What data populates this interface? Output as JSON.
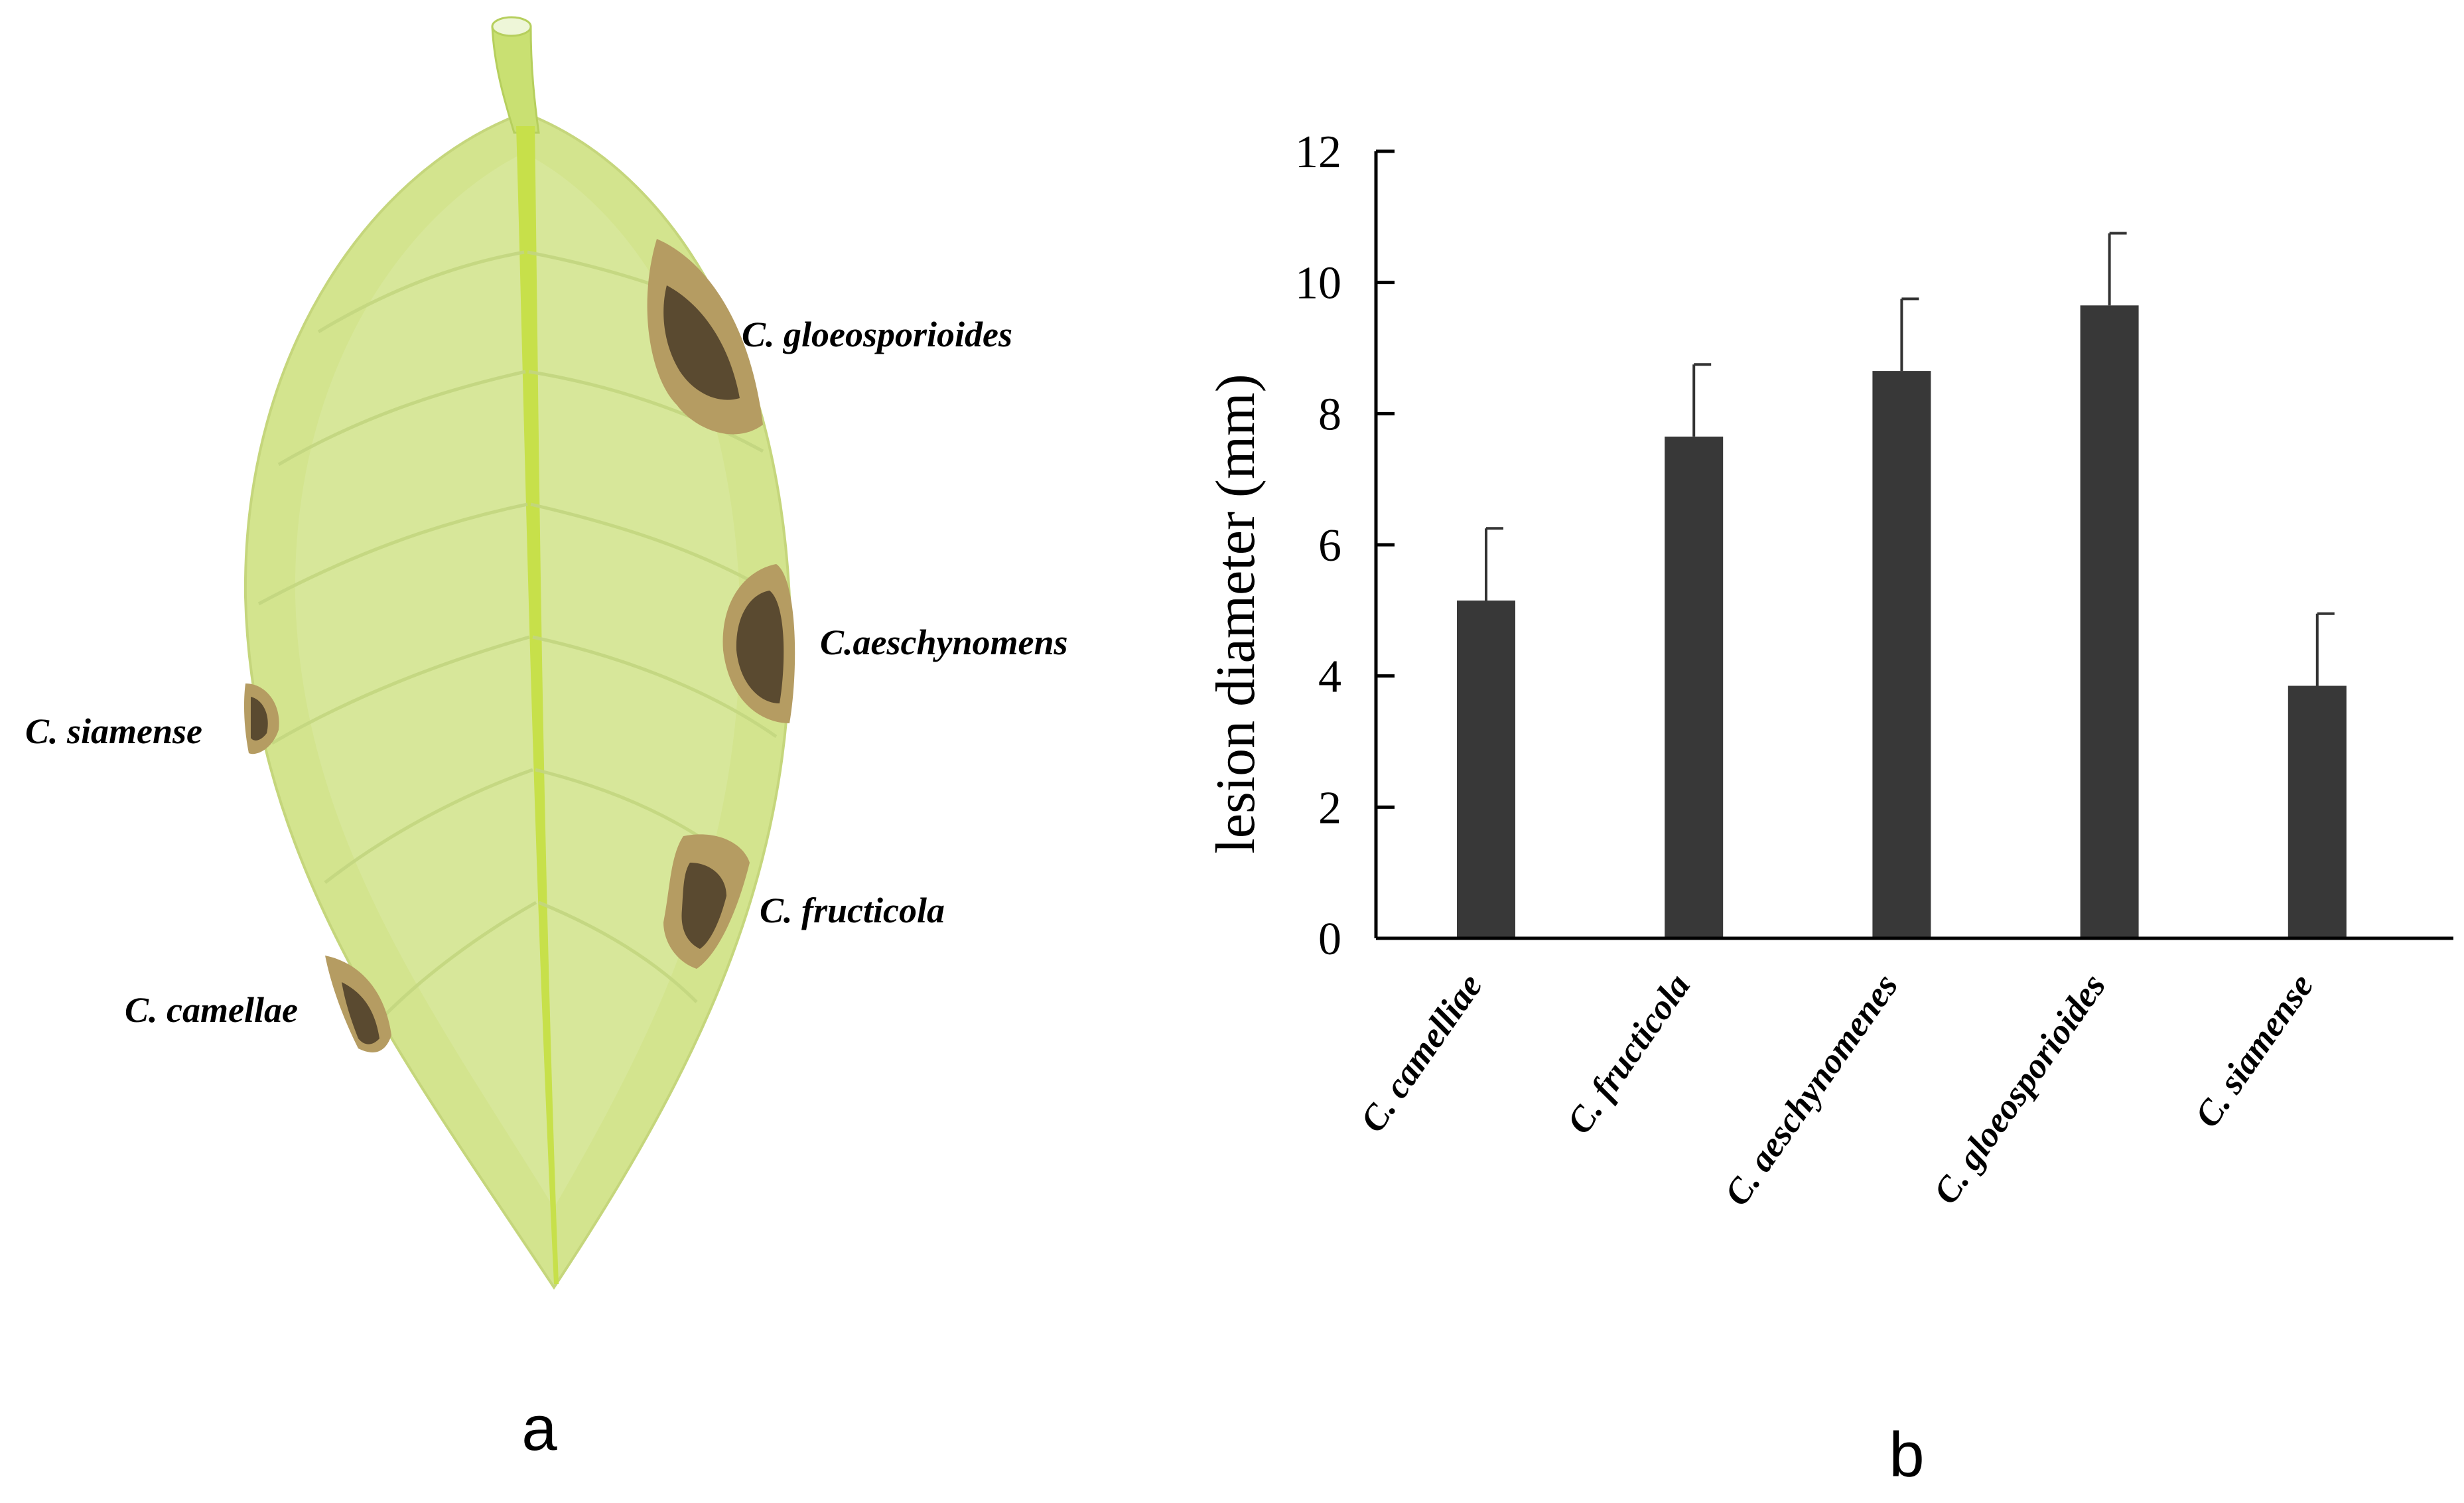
{
  "panel_a": {
    "label": "a",
    "annotations": [
      {
        "id": "gloeosporioides",
        "text": "C. gloeosporioides"
      },
      {
        "id": "aeschynomens",
        "text": "C.aeschynomens"
      },
      {
        "id": "siamense",
        "text": "C. siamense"
      },
      {
        "id": "fructicola",
        "text": "C. fructicola"
      },
      {
        "id": "camellae",
        "text": "C. camellae"
      }
    ],
    "colors": {
      "leaf": "#d3e48e",
      "midrib": "#c7e04a",
      "lesion": "#5a4a30",
      "lesion_halo": "#b59c62"
    }
  },
  "panel_b": {
    "label": "b"
  },
  "chart_data": {
    "type": "bar",
    "title": "",
    "ylabel": "lesion diameter (mm)",
    "xlabel": "",
    "categories": [
      "C. camelliae",
      "C. fructicola",
      "C. aeschynomenes",
      "C. gloeosporioides",
      "C. siamense"
    ],
    "values": [
      5.15,
      7.65,
      8.65,
      9.65,
      3.85
    ],
    "errors": [
      1.1,
      1.1,
      1.1,
      1.1,
      1.1
    ],
    "ylim": [
      0,
      12
    ],
    "yticks": [
      "0",
      "2",
      "4",
      "6",
      "8",
      "10",
      "12"
    ],
    "grid": false,
    "legend": "none",
    "bar_color": "#383838"
  }
}
